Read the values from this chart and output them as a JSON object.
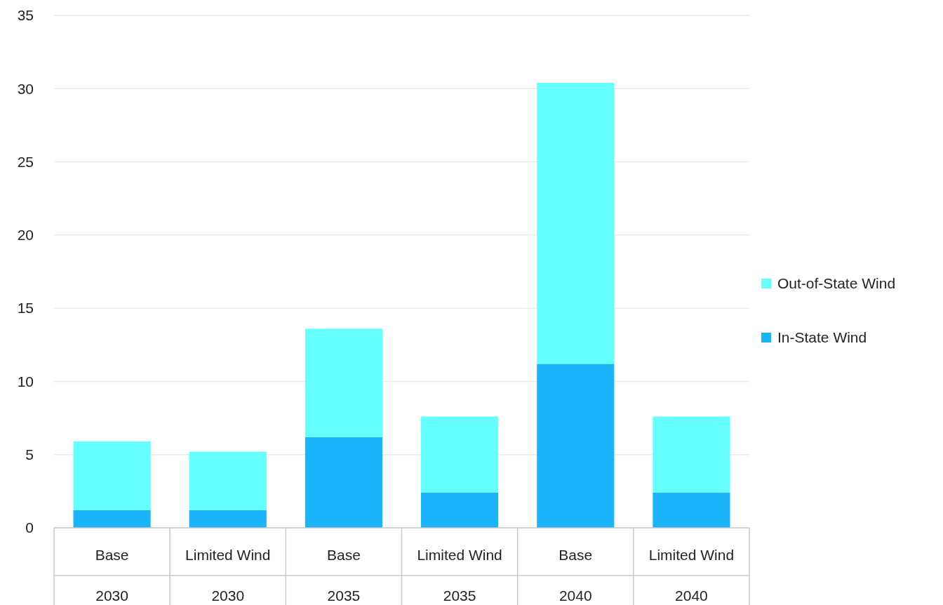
{
  "chart_data": {
    "type": "bar",
    "stacked": true,
    "categories": [
      "Base\n2030",
      "Limited Wind\n2030",
      "Base\n2035",
      "Limited Wind\n2035",
      "Base\n2040",
      "Limited Wind\n2040"
    ],
    "series": [
      {
        "name": "In-State Wind",
        "color": "#1ab4fb",
        "values": [
          1.2,
          1.2,
          6.2,
          2.4,
          11.2,
          2.4
        ]
      },
      {
        "name": "Out-of-State Wind",
        "color": "#66ffff",
        "values": [
          4.7,
          4.0,
          7.4,
          5.2,
          19.2,
          5.2
        ]
      }
    ],
    "ylim": [
      0,
      35
    ],
    "yticks": [
      0,
      5,
      10,
      15,
      20,
      25,
      30,
      35
    ],
    "grid": "y",
    "legend": "right"
  }
}
